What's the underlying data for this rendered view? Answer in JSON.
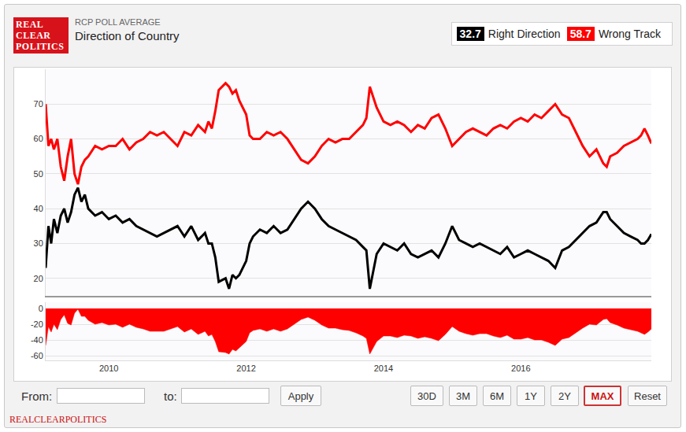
{
  "header": {
    "logo": [
      "REAL",
      "CLEAR",
      "POLITICS"
    ]
  },
  "chart_data": [
    {
      "type": "line",
      "subtitle": "RCP POLL AVERAGE",
      "title": "Direction of Country",
      "legend": "upper right",
      "grid": true,
      "x": [
        2009.08,
        2009.12,
        2009.16,
        2009.2,
        2009.25,
        2009.3,
        2009.35,
        2009.4,
        2009.45,
        2009.5,
        2009.55,
        2009.6,
        2009.65,
        2009.7,
        2009.8,
        2009.9,
        2010,
        2010.1,
        2010.2,
        2010.3,
        2010.4,
        2010.5,
        2010.6,
        2010.7,
        2010.8,
        2010.9,
        2011,
        2011.1,
        2011.2,
        2011.3,
        2011.4,
        2011.45,
        2011.5,
        2011.55,
        2011.6,
        2011.7,
        2011.75,
        2011.8,
        2011.85,
        2011.9,
        2012,
        2012.05,
        2012.1,
        2012.2,
        2012.3,
        2012.4,
        2012.5,
        2012.6,
        2012.7,
        2012.8,
        2012.9,
        2013,
        2013.1,
        2013.2,
        2013.3,
        2013.4,
        2013.5,
        2013.6,
        2013.7,
        2013.75,
        2013.8,
        2013.85,
        2013.9,
        2014,
        2014.1,
        2014.2,
        2014.3,
        2014.4,
        2014.5,
        2014.6,
        2014.7,
        2014.8,
        2014.9,
        2015,
        2015.1,
        2015.2,
        2015.3,
        2015.4,
        2015.5,
        2015.6,
        2015.7,
        2015.8,
        2015.9,
        2016,
        2016.1,
        2016.2,
        2016.3,
        2016.4,
        2016.5,
        2016.6,
        2016.7,
        2016.8,
        2016.9,
        2017,
        2017.1,
        2017.2,
        2017.25,
        2017.3,
        2017.4,
        2017.5,
        2017.6,
        2017.7,
        2017.75,
        2017.8,
        2017.85,
        2017.9
      ],
      "xlim": [
        2009.08,
        2017.9
      ],
      "ylim": [
        15,
        80
      ],
      "yticks": [
        20,
        30,
        40,
        50,
        60,
        70
      ],
      "series": [
        {
          "name": "Right Direction",
          "color": "#000000",
          "values": [
            23,
            35,
            30,
            37,
            33,
            38,
            40,
            36,
            39,
            44,
            46,
            42,
            44,
            40,
            38,
            39,
            37,
            38,
            36,
            37,
            35,
            34,
            33,
            32,
            33,
            34,
            35,
            32,
            35,
            31,
            33,
            30,
            30,
            26,
            19,
            20,
            17,
            21,
            20,
            21,
            25,
            30,
            32,
            34,
            33,
            35,
            33,
            34,
            37,
            40,
            42,
            40,
            37,
            35,
            34,
            33,
            32,
            31,
            29,
            28,
            17,
            22,
            27,
            30,
            29,
            28,
            30,
            27,
            26,
            27,
            28,
            26,
            30,
            35,
            31,
            30,
            29,
            30,
            29,
            28,
            27,
            29,
            26,
            27,
            28,
            27,
            26,
            25,
            23,
            28,
            29,
            31,
            33,
            35,
            36,
            39,
            39,
            37,
            35,
            33,
            32,
            31,
            30,
            30,
            31,
            32.7
          ]
        },
        {
          "name": "Wrong Track",
          "color": "#ff0000",
          "values": [
            70,
            58,
            60,
            57,
            60,
            52,
            48,
            55,
            60,
            50,
            47,
            52,
            54,
            55,
            58,
            57,
            58,
            58,
            60,
            57,
            59,
            60,
            62,
            61,
            62,
            60,
            58,
            62,
            61,
            64,
            62,
            65,
            63,
            68,
            74,
            76,
            75,
            73,
            74,
            71,
            67,
            61,
            60,
            60,
            62,
            61,
            62,
            60,
            57,
            54,
            53,
            55,
            58,
            60,
            59,
            60,
            60,
            62,
            64,
            66,
            75,
            72,
            69,
            65,
            64,
            65,
            64,
            62,
            64,
            63,
            66,
            67,
            63,
            58,
            60,
            62,
            63,
            62,
            61,
            63,
            64,
            63,
            65,
            66,
            65,
            67,
            66,
            68,
            70,
            67,
            66,
            62,
            58,
            55,
            57,
            53,
            52,
            55,
            56,
            58,
            59,
            60,
            61,
            63,
            61,
            58.7
          ]
        }
      ]
    },
    {
      "type": "area",
      "color": "#ff0000",
      "grid": true,
      "x": [
        2009.08,
        2009.12,
        2009.16,
        2009.2,
        2009.25,
        2009.3,
        2009.35,
        2009.4,
        2009.45,
        2009.5,
        2009.55,
        2009.6,
        2009.65,
        2009.7,
        2009.8,
        2009.9,
        2010,
        2010.1,
        2010.2,
        2010.3,
        2010.4,
        2010.5,
        2010.6,
        2010.7,
        2010.8,
        2010.9,
        2011,
        2011.1,
        2011.2,
        2011.3,
        2011.4,
        2011.45,
        2011.5,
        2011.55,
        2011.6,
        2011.7,
        2011.75,
        2011.8,
        2011.85,
        2011.9,
        2012,
        2012.05,
        2012.1,
        2012.2,
        2012.3,
        2012.4,
        2012.5,
        2012.6,
        2012.7,
        2012.8,
        2012.9,
        2013,
        2013.1,
        2013.2,
        2013.3,
        2013.4,
        2013.5,
        2013.6,
        2013.7,
        2013.75,
        2013.8,
        2013.85,
        2013.9,
        2014,
        2014.1,
        2014.2,
        2014.3,
        2014.4,
        2014.5,
        2014.6,
        2014.7,
        2014.8,
        2014.9,
        2015,
        2015.1,
        2015.2,
        2015.3,
        2015.4,
        2015.5,
        2015.6,
        2015.7,
        2015.8,
        2015.9,
        2016,
        2016.1,
        2016.2,
        2016.3,
        2016.4,
        2016.5,
        2016.6,
        2016.7,
        2016.8,
        2016.9,
        2017,
        2017.1,
        2017.2,
        2017.25,
        2017.3,
        2017.4,
        2017.5,
        2017.6,
        2017.7,
        2017.75,
        2017.8,
        2017.85,
        2017.9
      ],
      "values": [
        -47,
        -23,
        -30,
        -20,
        -27,
        -14,
        -8,
        -19,
        -21,
        -6,
        -1,
        -10,
        -10,
        -15,
        -20,
        -18,
        -21,
        -20,
        -24,
        -20,
        -24,
        -26,
        -29,
        -29,
        -29,
        -26,
        -23,
        -30,
        -26,
        -33,
        -29,
        -35,
        -33,
        -42,
        -55,
        -56,
        -58,
        -52,
        -54,
        -50,
        -42,
        -31,
        -28,
        -26,
        -29,
        -26,
        -29,
        -26,
        -20,
        -14,
        -11,
        -15,
        -21,
        -25,
        -25,
        -27,
        -28,
        -31,
        -35,
        -38,
        -58,
        -50,
        -42,
        -35,
        -35,
        -37,
        -34,
        -35,
        -38,
        -36,
        -38,
        -41,
        -33,
        -23,
        -29,
        -32,
        -34,
        -32,
        -32,
        -35,
        -37,
        -34,
        -39,
        -39,
        -37,
        -40,
        -40,
        -43,
        -47,
        -39,
        -37,
        -31,
        -25,
        -20,
        -21,
        -14,
        -13,
        -18,
        -21,
        -25,
        -27,
        -29,
        -31,
        -33,
        -30,
        -26
      ],
      "xlim": [
        2009.08,
        2017.9
      ],
      "xticks": [
        2010,
        2012,
        2014,
        2016
      ],
      "ylim": [
        -66,
        8
      ],
      "yticks": [
        0,
        -20,
        -40,
        -60
      ]
    }
  ],
  "controls": {
    "from": "From:",
    "to": "to:",
    "apply": "Apply",
    "buttons": [
      "30D",
      "3M",
      "6M",
      "1Y",
      "2Y",
      "MAX",
      "Reset"
    ],
    "active": "MAX"
  },
  "footer": "REALCLEARPOLITICS"
}
